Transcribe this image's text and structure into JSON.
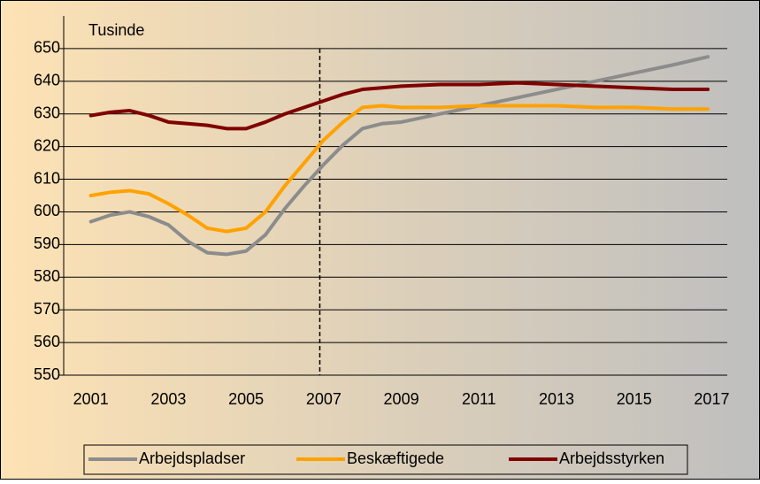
{
  "chart_data": {
    "type": "line",
    "ylabel": "Tusinde",
    "x": [
      2001,
      2001.5,
      2002,
      2002.5,
      2003,
      2003.5,
      2004,
      2004.5,
      2005,
      2005.5,
      2006,
      2006.5,
      2007,
      2007.5,
      2008,
      2008.5,
      2009,
      2010,
      2011,
      2012,
      2013,
      2014,
      2015,
      2016,
      2016.9
    ],
    "series": [
      {
        "name": "Arbejdspladser",
        "color": "#8c8c8c",
        "values": [
          597,
          599,
          600,
          598.5,
          596,
          591,
          587.5,
          587,
          588,
          593,
          601,
          608,
          614.5,
          620.5,
          625.5,
          627,
          627.5,
          630,
          632.5,
          635,
          637.5,
          640,
          642.5,
          645,
          647.5
        ]
      },
      {
        "name": "Beskæftigede",
        "color": "#ffa200",
        "values": [
          605,
          606,
          606.5,
          605.5,
          602.5,
          599,
          595,
          594,
          595,
          600,
          608,
          615,
          622,
          627.5,
          632,
          632.5,
          632,
          632,
          632.5,
          632.5,
          632.5,
          632,
          632,
          631.5,
          631.5
        ]
      },
      {
        "name": "Arbejdsstyrken",
        "color": "#800000",
        "values": [
          629.5,
          630.5,
          631,
          629.5,
          627.5,
          627,
          626.5,
          625.5,
          625.5,
          627.5,
          630,
          632,
          634,
          636,
          637.5,
          638,
          638.5,
          639,
          639,
          639.5,
          639,
          638.5,
          638,
          637.5,
          637.5
        ]
      }
    ],
    "xlim": [
      2000.3,
      2017.4
    ],
    "xticks": [
      2001,
      2003,
      2005,
      2007,
      2009,
      2011,
      2013,
      2015,
      2017
    ],
    "ylim": [
      550,
      660
    ],
    "yticks": [
      550,
      560,
      570,
      580,
      590,
      600,
      610,
      620,
      630,
      640,
      650
    ],
    "grid": true,
    "vline": 2006.9,
    "legend": "bottom"
  }
}
